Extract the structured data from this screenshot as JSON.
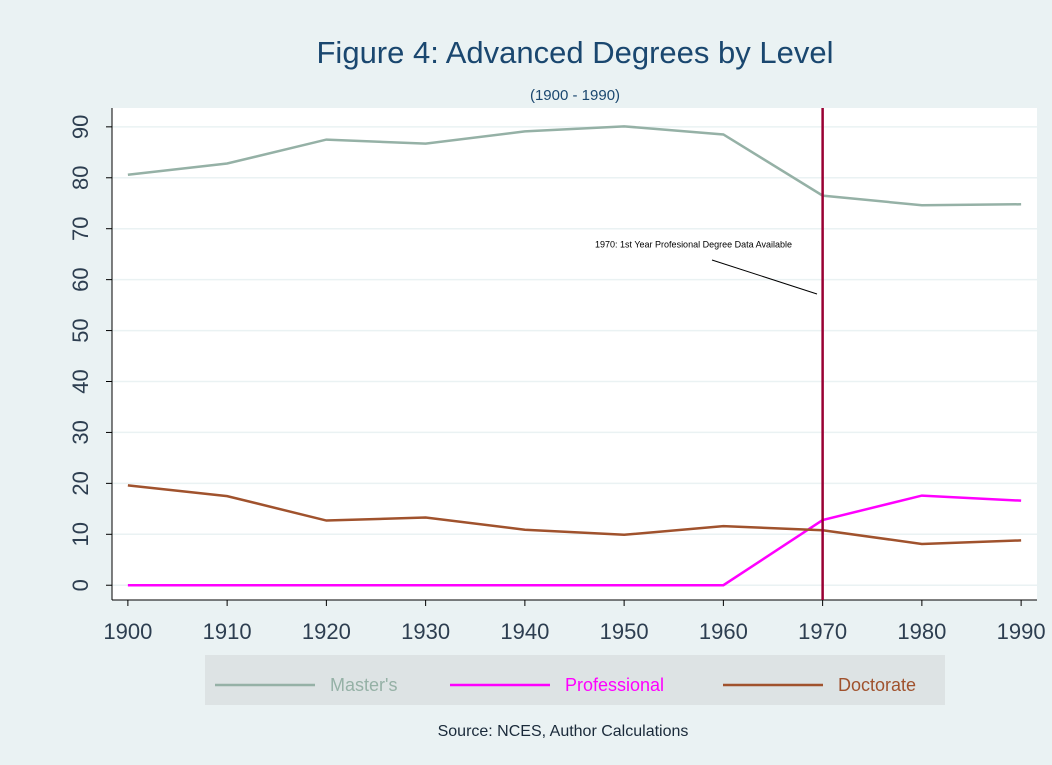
{
  "chart_data": {
    "type": "line",
    "title": "Figure 4: Advanced Degrees by Level",
    "subtitle": "(1900 - 1990)",
    "source": "Source: NCES, Author Calculations",
    "annotation": "1970: 1st Year Profesional Degree Data Available",
    "vline": 1970,
    "vline_color": "#990033",
    "x": [
      1900,
      1910,
      1920,
      1930,
      1940,
      1950,
      1960,
      1970,
      1980,
      1990
    ],
    "series": [
      {
        "name": "Master's",
        "color": "#95b1a6",
        "values": [
          80.6,
          82.8,
          87.5,
          86.7,
          89.1,
          90.1,
          88.5,
          76.5,
          74.6,
          74.8
        ]
      },
      {
        "name": "Professional",
        "color": "#ff00ff",
        "values": [
          0,
          0,
          0,
          0,
          0,
          0,
          0,
          12.8,
          17.6,
          16.6
        ]
      },
      {
        "name": "Doctorate",
        "color": "#a0522d",
        "values": [
          19.6,
          17.5,
          12.7,
          13.3,
          10.9,
          9.9,
          11.6,
          10.8,
          8.1,
          8.8
        ]
      }
    ],
    "xlim": [
      1898.4,
      1991.6
    ],
    "xticks": [
      1900,
      1910,
      1920,
      1930,
      1940,
      1950,
      1960,
      1970,
      1980,
      1990
    ],
    "ylim": [
      -2.9,
      93.7
    ],
    "yticks": [
      0,
      10,
      20,
      30,
      40,
      50,
      60,
      70,
      80,
      90
    ],
    "grid": true,
    "legend": "bottom"
  }
}
